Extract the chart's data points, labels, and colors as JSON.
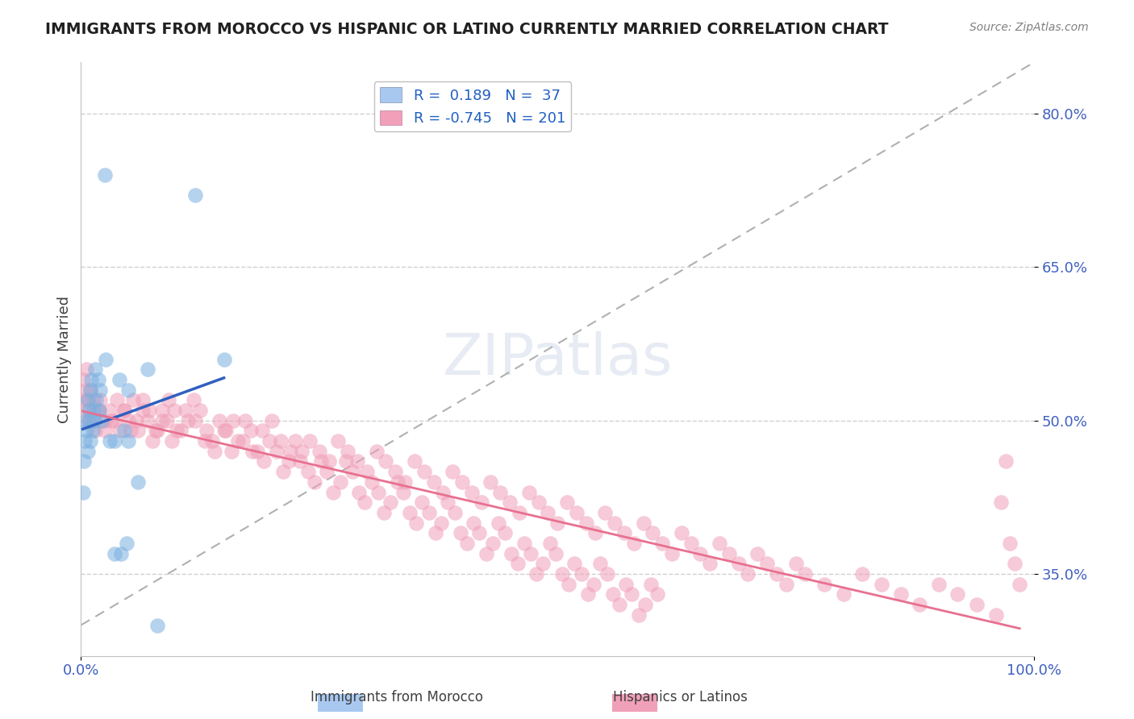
{
  "title": "IMMIGRANTS FROM MOROCCO VS HISPANIC OR LATINO CURRENTLY MARRIED CORRELATION CHART",
  "source": "Source: ZipAtlas.com",
  "xlabel": "",
  "ylabel": "Currently Married",
  "watermark": "ZIPatlas",
  "xlim": [
    0.0,
    1.0
  ],
  "ylim": [
    0.27,
    0.85
  ],
  "yticks": [
    0.35,
    0.5,
    0.65,
    0.8
  ],
  "ytick_labels": [
    "35.0%",
    "50.0%",
    "65.0%",
    "80.0%"
  ],
  "xticks": [
    0.0,
    0.25,
    0.5,
    0.75,
    1.0
  ],
  "xtick_labels": [
    "0.0%",
    "",
    "",
    "",
    "100.0%"
  ],
  "legend_entries": [
    {
      "color": "#a8c8f0",
      "R": "0.189",
      "N": "37"
    },
    {
      "color": "#f0a0b8",
      "R": "-0.745",
      "N": "201"
    }
  ],
  "legend_labels": [
    "Immigrants from Morocco",
    "Hispanics or Latinos"
  ],
  "blue_scatter_color": "#7ab0e0",
  "pink_scatter_color": "#f0a0b8",
  "blue_line_color": "#3060c0",
  "pink_line_color": "#e87090",
  "diag_line_color": "#b0b0b0",
  "title_color": "#202020",
  "axis_label_color": "#404040",
  "tick_label_color": "#4060c0",
  "grid_color": "#d0d0d0",
  "background_color": "#ffffff",
  "blue_scatter_x": [
    0.002,
    0.003,
    0.004,
    0.005,
    0.006,
    0.007,
    0.007,
    0.008,
    0.009,
    0.01,
    0.01,
    0.011,
    0.012,
    0.013,
    0.014,
    0.015,
    0.016,
    0.018,
    0.019,
    0.02,
    0.022,
    0.025,
    0.026,
    0.03,
    0.035,
    0.04,
    0.042,
    0.045,
    0.048,
    0.05,
    0.06,
    0.07,
    0.08,
    0.12,
    0.15,
    0.05,
    0.035
  ],
  "blue_scatter_y": [
    0.43,
    0.46,
    0.48,
    0.5,
    0.49,
    0.52,
    0.47,
    0.51,
    0.5,
    0.53,
    0.48,
    0.54,
    0.49,
    0.51,
    0.5,
    0.55,
    0.52,
    0.54,
    0.51,
    0.53,
    0.5,
    0.74,
    0.56,
    0.48,
    0.48,
    0.54,
    0.37,
    0.49,
    0.38,
    0.48,
    0.44,
    0.55,
    0.3,
    0.72,
    0.56,
    0.53,
    0.37
  ],
  "pink_scatter_x": [
    0.002,
    0.003,
    0.004,
    0.005,
    0.006,
    0.007,
    0.008,
    0.009,
    0.01,
    0.012,
    0.015,
    0.018,
    0.02,
    0.025,
    0.03,
    0.035,
    0.04,
    0.045,
    0.05,
    0.055,
    0.06,
    0.065,
    0.07,
    0.075,
    0.08,
    0.085,
    0.09,
    0.095,
    0.1,
    0.11,
    0.12,
    0.13,
    0.14,
    0.15,
    0.16,
    0.17,
    0.18,
    0.19,
    0.2,
    0.21,
    0.22,
    0.23,
    0.24,
    0.25,
    0.26,
    0.27,
    0.28,
    0.29,
    0.3,
    0.31,
    0.32,
    0.33,
    0.34,
    0.35,
    0.36,
    0.37,
    0.38,
    0.39,
    0.4,
    0.41,
    0.42,
    0.43,
    0.44,
    0.45,
    0.46,
    0.47,
    0.48,
    0.49,
    0.5,
    0.51,
    0.52,
    0.53,
    0.54,
    0.55,
    0.56,
    0.57,
    0.58,
    0.59,
    0.6,
    0.61,
    0.62,
    0.63,
    0.64,
    0.65,
    0.66,
    0.67,
    0.68,
    0.69,
    0.7,
    0.71,
    0.72,
    0.73,
    0.74,
    0.75,
    0.76,
    0.78,
    0.8,
    0.82,
    0.84,
    0.86,
    0.88,
    0.9,
    0.92,
    0.94,
    0.96,
    0.965,
    0.97,
    0.975,
    0.98,
    0.985,
    0.008,
    0.012,
    0.018,
    0.025,
    0.032,
    0.038,
    0.045,
    0.052,
    0.058,
    0.065,
    0.072,
    0.078,
    0.085,
    0.092,
    0.098,
    0.105,
    0.112,
    0.118,
    0.125,
    0.132,
    0.138,
    0.145,
    0.152,
    0.158,
    0.165,
    0.172,
    0.178,
    0.185,
    0.192,
    0.198,
    0.205,
    0.212,
    0.218,
    0.225,
    0.232,
    0.238,
    0.245,
    0.252,
    0.258,
    0.265,
    0.272,
    0.278,
    0.285,
    0.292,
    0.298,
    0.305,
    0.312,
    0.318,
    0.325,
    0.332,
    0.338,
    0.345,
    0.352,
    0.358,
    0.365,
    0.372,
    0.378,
    0.385,
    0.392,
    0.398,
    0.405,
    0.412,
    0.418,
    0.425,
    0.432,
    0.438,
    0.445,
    0.452,
    0.458,
    0.465,
    0.472,
    0.478,
    0.485,
    0.492,
    0.498,
    0.505,
    0.512,
    0.518,
    0.525,
    0.532,
    0.538,
    0.545,
    0.552,
    0.558,
    0.565,
    0.572,
    0.578,
    0.585,
    0.592,
    0.598,
    0.605
  ],
  "pink_scatter_y": [
    0.54,
    0.52,
    0.51,
    0.53,
    0.55,
    0.52,
    0.5,
    0.51,
    0.53,
    0.5,
    0.49,
    0.51,
    0.52,
    0.5,
    0.51,
    0.5,
    0.49,
    0.51,
    0.5,
    0.52,
    0.49,
    0.51,
    0.5,
    0.48,
    0.49,
    0.51,
    0.5,
    0.48,
    0.49,
    0.51,
    0.5,
    0.48,
    0.47,
    0.49,
    0.5,
    0.48,
    0.47,
    0.49,
    0.5,
    0.48,
    0.47,
    0.46,
    0.48,
    0.47,
    0.46,
    0.48,
    0.47,
    0.46,
    0.45,
    0.47,
    0.46,
    0.45,
    0.44,
    0.46,
    0.45,
    0.44,
    0.43,
    0.45,
    0.44,
    0.43,
    0.42,
    0.44,
    0.43,
    0.42,
    0.41,
    0.43,
    0.42,
    0.41,
    0.4,
    0.42,
    0.41,
    0.4,
    0.39,
    0.41,
    0.4,
    0.39,
    0.38,
    0.4,
    0.39,
    0.38,
    0.37,
    0.39,
    0.38,
    0.37,
    0.36,
    0.38,
    0.37,
    0.36,
    0.35,
    0.37,
    0.36,
    0.35,
    0.34,
    0.36,
    0.35,
    0.34,
    0.33,
    0.35,
    0.34,
    0.33,
    0.32,
    0.34,
    0.33,
    0.32,
    0.31,
    0.42,
    0.46,
    0.38,
    0.36,
    0.34,
    0.5,
    0.52,
    0.51,
    0.49,
    0.5,
    0.52,
    0.51,
    0.49,
    0.5,
    0.52,
    0.51,
    0.49,
    0.5,
    0.52,
    0.51,
    0.49,
    0.5,
    0.52,
    0.51,
    0.49,
    0.48,
    0.5,
    0.49,
    0.47,
    0.48,
    0.5,
    0.49,
    0.47,
    0.46,
    0.48,
    0.47,
    0.45,
    0.46,
    0.48,
    0.47,
    0.45,
    0.44,
    0.46,
    0.45,
    0.43,
    0.44,
    0.46,
    0.45,
    0.43,
    0.42,
    0.44,
    0.43,
    0.41,
    0.42,
    0.44,
    0.43,
    0.41,
    0.4,
    0.42,
    0.41,
    0.39,
    0.4,
    0.42,
    0.41,
    0.39,
    0.38,
    0.4,
    0.39,
    0.37,
    0.38,
    0.4,
    0.39,
    0.37,
    0.36,
    0.38,
    0.37,
    0.35,
    0.36,
    0.38,
    0.37,
    0.35,
    0.34,
    0.36,
    0.35,
    0.33,
    0.34,
    0.36,
    0.35,
    0.33,
    0.32,
    0.34,
    0.33,
    0.31,
    0.32,
    0.34,
    0.33
  ]
}
